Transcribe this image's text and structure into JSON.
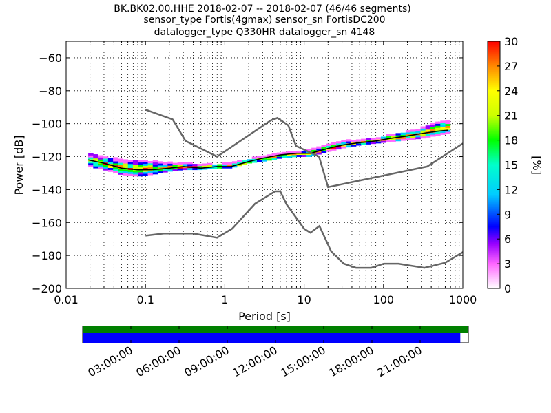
{
  "title_lines": [
    "BK.BK02.00.HHE   2018-02-07 -- 2018-02-07  (46/46 segments)",
    "sensor_type Fortis(4gmax) sensor_sn FortisDC200",
    "datalogger_type Q330HR datalogger_sn 4148"
  ],
  "chart_data": {
    "type": "heatmap",
    "xlabel": "Period [s]",
    "ylabel": "Power [dB]",
    "x_scale": "log",
    "xlim": [
      0.01,
      1000
    ],
    "ylim": [
      -200,
      -50
    ],
    "x_ticks": [
      0.01,
      0.1,
      1,
      10,
      100,
      1000
    ],
    "x_tick_labels": [
      "0.01",
      "0.1",
      "1",
      "10",
      "100",
      "1000"
    ],
    "y_ticks": [
      -200,
      -180,
      -160,
      -140,
      -120,
      -100,
      -80,
      -60
    ],
    "grid": true,
    "colorbar": {
      "label": "[%]",
      "range": [
        0,
        30
      ],
      "ticks": [
        0,
        3,
        6,
        9,
        12,
        15,
        18,
        21,
        24,
        27,
        30
      ],
      "colors": [
        "#ffffff",
        "#ff66ff",
        "#9900ff",
        "#0000ff",
        "#00ccff",
        "#00ffcc",
        "#00ff00",
        "#ccff00",
        "#ffff00",
        "#ff8800",
        "#ff0000"
      ]
    },
    "median_psd": [
      [
        0.019,
        -122
      ],
      [
        0.03,
        -124
      ],
      [
        0.05,
        -127
      ],
      [
        0.08,
        -128
      ],
      [
        0.12,
        -128
      ],
      [
        0.2,
        -127
      ],
      [
        0.3,
        -126
      ],
      [
        0.5,
        -127
      ],
      [
        0.8,
        -126
      ],
      [
        1.2,
        -126
      ],
      [
        2,
        -123
      ],
      [
        3,
        -121
      ],
      [
        5,
        -119
      ],
      [
        8,
        -118
      ],
      [
        12,
        -118
      ],
      [
        20,
        -115
      ],
      [
        30,
        -113
      ],
      [
        50,
        -111.5
      ],
      [
        80,
        -110.5
      ],
      [
        120,
        -109
      ],
      [
        200,
        -107.5
      ],
      [
        300,
        -106
      ],
      [
        500,
        -104.5
      ],
      [
        650,
        -104
      ]
    ],
    "psd_band": [
      [
        0.019,
        -118,
        -126
      ],
      [
        0.03,
        -120,
        -128
      ],
      [
        0.05,
        -122,
        -131
      ],
      [
        0.08,
        -123,
        -132
      ],
      [
        0.12,
        -123,
        -131
      ],
      [
        0.2,
        -124,
        -129
      ],
      [
        0.3,
        -124,
        -128
      ],
      [
        0.5,
        -125,
        -128
      ],
      [
        0.8,
        -125,
        -127
      ],
      [
        1.2,
        -124,
        -127
      ],
      [
        2,
        -122,
        -124
      ],
      [
        3,
        -120,
        -123
      ],
      [
        5,
        -118,
        -121
      ],
      [
        8,
        -117,
        -120
      ],
      [
        12,
        -116,
        -120
      ],
      [
        20,
        -113,
        -117
      ],
      [
        30,
        -111,
        -115
      ],
      [
        50,
        -110,
        -113
      ],
      [
        80,
        -109,
        -112
      ],
      [
        120,
        -107,
        -111
      ],
      [
        200,
        -105,
        -110
      ],
      [
        300,
        -103,
        -109
      ],
      [
        500,
        -99,
        -107
      ],
      [
        650,
        -98,
        -106
      ]
    ],
    "nhnm": [
      [
        0.1,
        -91.5
      ],
      [
        0.22,
        -97.4
      ],
      [
        0.32,
        -110.5
      ],
      [
        0.8,
        -120
      ],
      [
        3.8,
        -98
      ],
      [
        4.6,
        -96.5
      ],
      [
        6.3,
        -101
      ],
      [
        7.9,
        -113.5
      ],
      [
        15.4,
        -120
      ],
      [
        20,
        -138.5
      ],
      [
        354.8,
        -126
      ],
      [
        1000,
        -112
      ]
    ],
    "nlnm": [
      [
        0.1,
        -168
      ],
      [
        0.17,
        -166.7
      ],
      [
        0.4,
        -166.7
      ],
      [
        0.8,
        -169.2
      ],
      [
        1.24,
        -163.7
      ],
      [
        2.4,
        -148.6
      ],
      [
        4.3,
        -141.1
      ],
      [
        5,
        -141.1
      ],
      [
        6,
        -149
      ],
      [
        10,
        -163.8
      ],
      [
        12,
        -166.2
      ],
      [
        15.6,
        -162.1
      ],
      [
        21.9,
        -177.5
      ],
      [
        31.6,
        -185
      ],
      [
        45,
        -187.5
      ],
      [
        70,
        -187.5
      ],
      [
        101,
        -185
      ],
      [
        154,
        -185
      ],
      [
        328,
        -187.5
      ],
      [
        600,
        -184.4
      ],
      [
        1000,
        -178
      ]
    ]
  },
  "coverage_timeline": {
    "tick_labels": [
      "03:00:00",
      "06:00:00",
      "09:00:00",
      "12:00:00",
      "15:00:00",
      "18:00:00",
      "21:00:00"
    ],
    "tick_hours": [
      3,
      6,
      9,
      12,
      15,
      18,
      21
    ],
    "span_hours": [
      0,
      24
    ],
    "data_coverage_end_hour": 23.5,
    "colors": {
      "segments": "#008000",
      "data": "#0000ff"
    }
  }
}
